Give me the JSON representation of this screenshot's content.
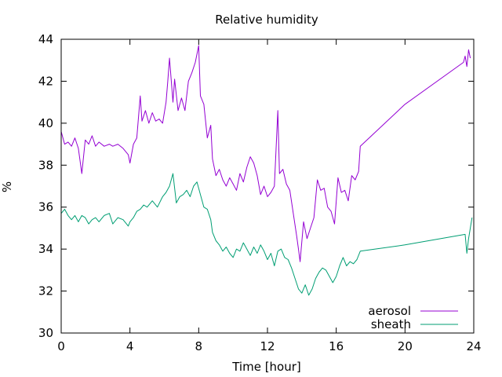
{
  "chart_data": {
    "type": "line",
    "title": "Relative humidity",
    "xlabel": "Time [hour]",
    "ylabel": "%",
    "xlim": [
      0,
      24
    ],
    "ylim": [
      30,
      44
    ],
    "xticks": [
      0,
      4,
      8,
      12,
      16,
      20,
      24
    ],
    "yticks": [
      30,
      32,
      34,
      36,
      38,
      40,
      42,
      44
    ],
    "grid": false,
    "legend_position": "bottom-right",
    "series": [
      {
        "name": "aerosol",
        "color": "#9400d3",
        "points": [
          [
            0.0,
            39.6
          ],
          [
            0.2,
            39.0
          ],
          [
            0.4,
            39.1
          ],
          [
            0.6,
            38.9
          ],
          [
            0.8,
            39.3
          ],
          [
            1.0,
            38.8
          ],
          [
            1.2,
            37.6
          ],
          [
            1.4,
            39.2
          ],
          [
            1.6,
            39.0
          ],
          [
            1.8,
            39.4
          ],
          [
            2.0,
            38.9
          ],
          [
            2.2,
            39.1
          ],
          [
            2.5,
            38.9
          ],
          [
            2.8,
            39.0
          ],
          [
            3.0,
            38.9
          ],
          [
            3.3,
            39.0
          ],
          [
            3.6,
            38.8
          ],
          [
            3.9,
            38.5
          ],
          [
            4.0,
            38.1
          ],
          [
            4.2,
            39.0
          ],
          [
            4.4,
            39.3
          ],
          [
            4.6,
            41.3
          ],
          [
            4.7,
            40.1
          ],
          [
            4.9,
            40.6
          ],
          [
            5.1,
            40.0
          ],
          [
            5.3,
            40.5
          ],
          [
            5.5,
            40.1
          ],
          [
            5.7,
            40.2
          ],
          [
            5.9,
            40.0
          ],
          [
            6.1,
            41.0
          ],
          [
            6.2,
            42.0
          ],
          [
            6.3,
            43.1
          ],
          [
            6.5,
            41.0
          ],
          [
            6.6,
            42.1
          ],
          [
            6.8,
            40.6
          ],
          [
            7.0,
            41.2
          ],
          [
            7.2,
            40.6
          ],
          [
            7.4,
            42.0
          ],
          [
            7.6,
            42.4
          ],
          [
            7.8,
            42.9
          ],
          [
            8.0,
            43.7
          ],
          [
            8.1,
            41.3
          ],
          [
            8.3,
            40.9
          ],
          [
            8.5,
            39.3
          ],
          [
            8.7,
            39.9
          ],
          [
            8.8,
            38.3
          ],
          [
            9.0,
            37.5
          ],
          [
            9.2,
            37.8
          ],
          [
            9.4,
            37.3
          ],
          [
            9.6,
            37.0
          ],
          [
            9.8,
            37.4
          ],
          [
            10.0,
            37.1
          ],
          [
            10.2,
            36.8
          ],
          [
            10.4,
            37.6
          ],
          [
            10.6,
            37.2
          ],
          [
            10.8,
            37.9
          ],
          [
            11.0,
            38.4
          ],
          [
            11.2,
            38.1
          ],
          [
            11.4,
            37.5
          ],
          [
            11.6,
            36.6
          ],
          [
            11.8,
            37.0
          ],
          [
            12.0,
            36.5
          ],
          [
            12.2,
            36.7
          ],
          [
            12.4,
            37.0
          ],
          [
            12.6,
            40.6
          ],
          [
            12.7,
            37.6
          ],
          [
            12.9,
            37.8
          ],
          [
            13.1,
            37.1
          ],
          [
            13.3,
            36.8
          ],
          [
            13.5,
            35.7
          ],
          [
            13.7,
            34.6
          ],
          [
            13.8,
            34.0
          ],
          [
            13.9,
            33.4
          ],
          [
            14.1,
            35.3
          ],
          [
            14.3,
            34.5
          ],
          [
            14.5,
            35.0
          ],
          [
            14.7,
            35.5
          ],
          [
            14.9,
            37.3
          ],
          [
            15.1,
            36.8
          ],
          [
            15.3,
            36.9
          ],
          [
            15.5,
            36.0
          ],
          [
            15.7,
            35.8
          ],
          [
            15.9,
            35.2
          ],
          [
            16.1,
            37.4
          ],
          [
            16.3,
            36.7
          ],
          [
            16.5,
            36.8
          ],
          [
            16.7,
            36.3
          ],
          [
            16.9,
            37.5
          ],
          [
            17.1,
            37.3
          ],
          [
            17.3,
            37.7
          ],
          [
            17.4,
            38.9
          ],
          [
            20.0,
            40.9
          ],
          [
            23.4,
            42.9
          ],
          [
            23.5,
            43.2
          ],
          [
            23.6,
            42.7
          ],
          [
            23.7,
            43.5
          ],
          [
            23.8,
            43.1
          ]
        ]
      },
      {
        "name": "sheath",
        "color": "#009e73",
        "points": [
          [
            0.0,
            35.7
          ],
          [
            0.2,
            35.9
          ],
          [
            0.4,
            35.6
          ],
          [
            0.6,
            35.4
          ],
          [
            0.8,
            35.6
          ],
          [
            1.0,
            35.3
          ],
          [
            1.2,
            35.6
          ],
          [
            1.4,
            35.5
          ],
          [
            1.6,
            35.2
          ],
          [
            1.8,
            35.4
          ],
          [
            2.0,
            35.5
          ],
          [
            2.2,
            35.3
          ],
          [
            2.5,
            35.6
          ],
          [
            2.8,
            35.7
          ],
          [
            3.0,
            35.2
          ],
          [
            3.3,
            35.5
          ],
          [
            3.6,
            35.4
          ],
          [
            3.9,
            35.1
          ],
          [
            4.0,
            35.3
          ],
          [
            4.2,
            35.5
          ],
          [
            4.4,
            35.8
          ],
          [
            4.6,
            35.9
          ],
          [
            4.8,
            36.1
          ],
          [
            5.0,
            36.0
          ],
          [
            5.3,
            36.3
          ],
          [
            5.6,
            36.0
          ],
          [
            5.9,
            36.5
          ],
          [
            6.1,
            36.7
          ],
          [
            6.3,
            37.0
          ],
          [
            6.5,
            37.6
          ],
          [
            6.7,
            36.2
          ],
          [
            6.9,
            36.5
          ],
          [
            7.1,
            36.6
          ],
          [
            7.3,
            36.8
          ],
          [
            7.5,
            36.5
          ],
          [
            7.7,
            37.0
          ],
          [
            7.9,
            37.2
          ],
          [
            8.1,
            36.6
          ],
          [
            8.3,
            36.0
          ],
          [
            8.5,
            35.9
          ],
          [
            8.7,
            35.4
          ],
          [
            8.8,
            34.8
          ],
          [
            9.0,
            34.4
          ],
          [
            9.2,
            34.2
          ],
          [
            9.4,
            33.9
          ],
          [
            9.6,
            34.1
          ],
          [
            9.8,
            33.8
          ],
          [
            10.0,
            33.6
          ],
          [
            10.2,
            34.0
          ],
          [
            10.4,
            33.9
          ],
          [
            10.6,
            34.3
          ],
          [
            10.8,
            34.0
          ],
          [
            11.0,
            33.7
          ],
          [
            11.2,
            34.1
          ],
          [
            11.4,
            33.8
          ],
          [
            11.6,
            34.2
          ],
          [
            11.8,
            33.9
          ],
          [
            12.0,
            33.5
          ],
          [
            12.2,
            33.8
          ],
          [
            12.4,
            33.2
          ],
          [
            12.6,
            33.9
          ],
          [
            12.8,
            34.0
          ],
          [
            13.0,
            33.6
          ],
          [
            13.2,
            33.5
          ],
          [
            13.4,
            33.1
          ],
          [
            13.6,
            32.6
          ],
          [
            13.8,
            32.1
          ],
          [
            14.0,
            31.9
          ],
          [
            14.2,
            32.3
          ],
          [
            14.4,
            31.8
          ],
          [
            14.6,
            32.1
          ],
          [
            14.8,
            32.6
          ],
          [
            15.0,
            32.9
          ],
          [
            15.2,
            33.1
          ],
          [
            15.4,
            33.0
          ],
          [
            15.6,
            32.7
          ],
          [
            15.8,
            32.4
          ],
          [
            16.0,
            32.7
          ],
          [
            16.2,
            33.2
          ],
          [
            16.4,
            33.6
          ],
          [
            16.6,
            33.2
          ],
          [
            16.8,
            33.4
          ],
          [
            17.0,
            33.3
          ],
          [
            17.2,
            33.5
          ],
          [
            17.4,
            33.9
          ],
          [
            20.0,
            34.2
          ],
          [
            23.5,
            34.7
          ],
          [
            23.6,
            33.8
          ],
          [
            23.7,
            34.5
          ],
          [
            23.8,
            35.0
          ],
          [
            23.9,
            35.5
          ]
        ]
      }
    ]
  }
}
